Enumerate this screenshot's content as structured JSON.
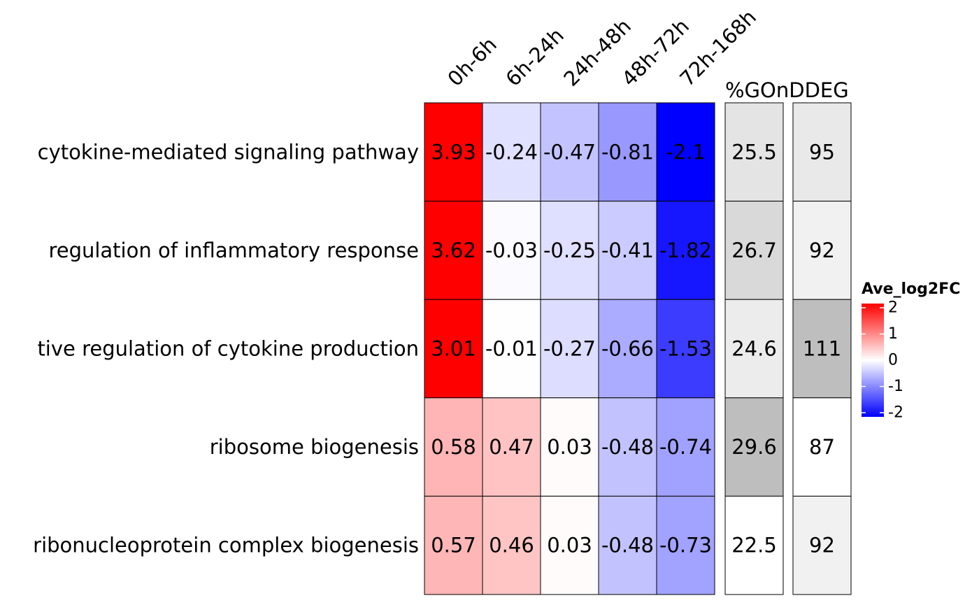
{
  "chart_data": {
    "type": "heatmap",
    "x_labels": [
      "0h-6h",
      "6h-24h",
      "24h-48h",
      "48h-72h",
      "72h-168h"
    ],
    "row_labels": [
      "cytokine-mediated signaling pathway",
      "regulation of inflammatory response",
      "tive regulation of cytokine production",
      "ribosome biogenesis",
      "ribonucleoprotein complex biogenesis"
    ],
    "values": [
      [
        3.93,
        -0.24,
        -0.47,
        -0.81,
        -2.1
      ],
      [
        3.62,
        -0.03,
        -0.25,
        -0.41,
        -1.82
      ],
      [
        3.01,
        -0.01,
        -0.27,
        -0.66,
        -1.53
      ],
      [
        0.58,
        0.47,
        0.03,
        -0.48,
        -0.74
      ],
      [
        0.57,
        0.46,
        0.03,
        -0.48,
        -0.73
      ]
    ],
    "value_labels": [
      [
        "3.93",
        "-0.24",
        "-0.47",
        "-0.81",
        "-2.1"
      ],
      [
        "3.62",
        "-0.03",
        "-0.25",
        "-0.41",
        "-1.82"
      ],
      [
        "3.01",
        "-0.01",
        "-0.27",
        "-0.66",
        "-1.53"
      ],
      [
        "0.58",
        "0.47",
        "0.03",
        "-0.48",
        "-0.74"
      ],
      [
        "0.57",
        "0.46",
        "0.03",
        "-0.48",
        "-0.73"
      ]
    ],
    "color_scale": {
      "title": "Ave_log2FC",
      "min": -2,
      "mid": 0,
      "max": 2,
      "low_color": "#0000ff",
      "mid_color": "#ffffff",
      "high_color": "#ff0000",
      "ticks": [
        2,
        1,
        0,
        -1,
        -2
      ],
      "tick_labels": [
        "2",
        "1",
        "0",
        "-1",
        "-2"
      ]
    },
    "annotation_columns": [
      {
        "title": "%GOnDDEG",
        "values": [
          25.5,
          26.7,
          24.6,
          29.6,
          22.5
        ],
        "value_labels": [
          "25.5",
          "26.7",
          "24.6",
          "29.6",
          "22.5"
        ],
        "color_low": "#ffffff",
        "color_high": "#bebebe"
      },
      {
        "title": "",
        "values": [
          95,
          92,
          111,
          87,
          92
        ],
        "value_labels": [
          "95",
          "92",
          "111",
          "87",
          "92"
        ],
        "color_low": "#ffffff",
        "color_high": "#bebebe"
      }
    ]
  }
}
